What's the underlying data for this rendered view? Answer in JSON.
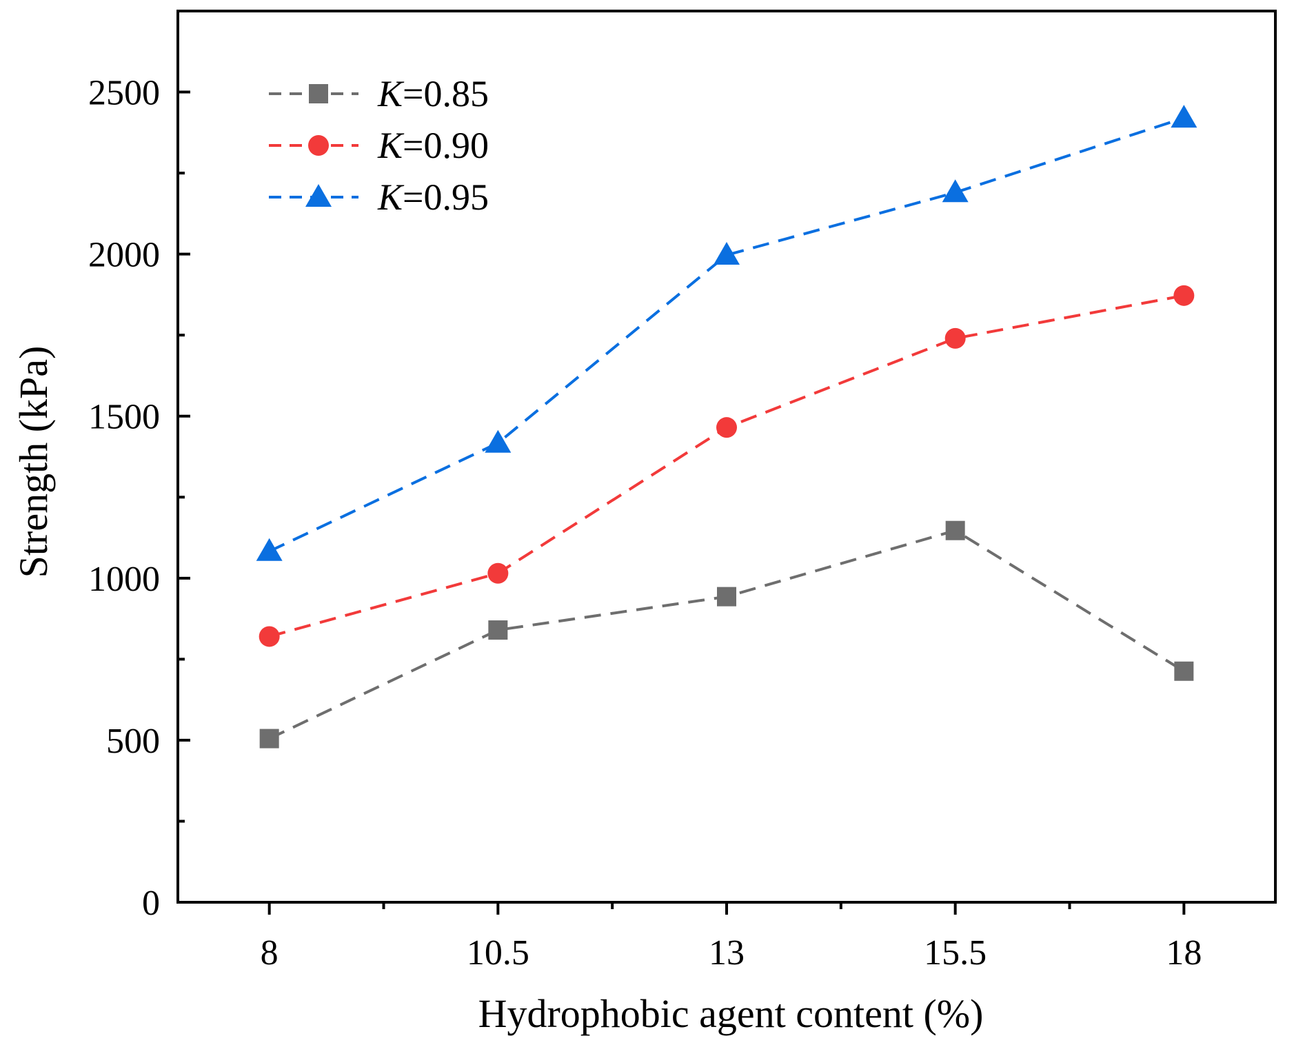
{
  "chart_data": {
    "type": "line",
    "title": "",
    "xlabel": "Hydrophobic agent content (%)",
    "ylabel": "Strength (kPa)",
    "x": [
      8,
      10.5,
      13,
      15.5,
      18
    ],
    "x_tick_labels": [
      "8",
      "10.5",
      "13",
      "15.5",
      "18"
    ],
    "xlim": [
      7,
      19
    ],
    "ylim": [
      0,
      2750
    ],
    "y_ticks": [
      0,
      500,
      1000,
      1500,
      2000,
      2500
    ],
    "y_tick_labels": [
      "0",
      "500",
      "1000",
      "1500",
      "2000",
      "2500"
    ],
    "grid": false,
    "legend_position": "top-left",
    "series": [
      {
        "name": "K=0.85",
        "prefix": "K",
        "suffix": "=0.85",
        "color": "#6e6e6e",
        "marker": "square",
        "values": [
          505,
          840,
          943,
          1147,
          713
        ]
      },
      {
        "name": "K=0.90",
        "prefix": "K",
        "suffix": "=0.90",
        "color": "#f23a3a",
        "marker": "circle",
        "values": [
          820,
          1015,
          1465,
          1740,
          1872
        ]
      },
      {
        "name": "K=0.95",
        "prefix": "K",
        "suffix": "=0.95",
        "color": "#0a6fe0",
        "marker": "triangle",
        "values": [
          1083,
          1417,
          1997,
          2190,
          2420
        ]
      }
    ]
  }
}
